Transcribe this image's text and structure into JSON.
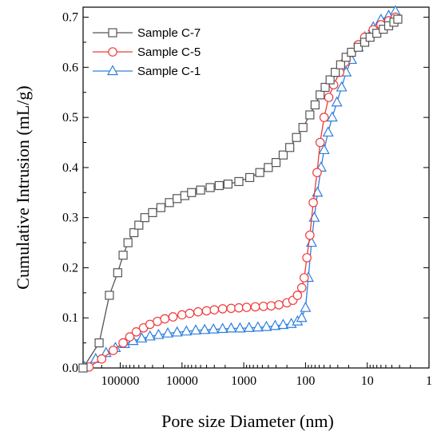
{
  "chart_data": {
    "type": "line",
    "title": "",
    "xlabel": "Pore size Diameter (nm)",
    "ylabel": "Cumulative Intrusion (mL/g)",
    "xscale": "log",
    "x_reversed": true,
    "xlim": [
      400000,
      1
    ],
    "ylim": [
      0,
      0.72
    ],
    "x_ticks": [
      100000,
      10000,
      1000,
      100,
      10,
      1
    ],
    "x_tick_labels": [
      "100000",
      "10000",
      "1000",
      "100",
      "10",
      "1"
    ],
    "y_ticks": [
      0.0,
      0.1,
      0.2,
      0.3,
      0.4,
      0.5,
      0.6,
      0.7
    ],
    "y_tick_labels": [
      "0.0",
      "0.1",
      "0.2",
      "0.3",
      "0.4",
      "0.5",
      "0.6",
      "0.7"
    ],
    "grid": false,
    "legend_position": "top-left",
    "series": [
      {
        "name": "Sample C-7",
        "color": "#555555",
        "marker": "square",
        "points": [
          [
            400000,
            0.0
          ],
          [
            220000,
            0.05
          ],
          [
            150000,
            0.145
          ],
          [
            110000,
            0.19
          ],
          [
            90000,
            0.225
          ],
          [
            75000,
            0.25
          ],
          [
            60000,
            0.27
          ],
          [
            50000,
            0.285
          ],
          [
            40000,
            0.3
          ],
          [
            30000,
            0.31
          ],
          [
            22000,
            0.32
          ],
          [
            16000,
            0.33
          ],
          [
            12000,
            0.338
          ],
          [
            9000,
            0.344
          ],
          [
            7000,
            0.35
          ],
          [
            5000,
            0.355
          ],
          [
            3500,
            0.36
          ],
          [
            2500,
            0.364
          ],
          [
            1800,
            0.367
          ],
          [
            1200,
            0.372
          ],
          [
            800,
            0.38
          ],
          [
            550,
            0.39
          ],
          [
            400,
            0.4
          ],
          [
            300,
            0.41
          ],
          [
            230,
            0.425
          ],
          [
            180,
            0.44
          ],
          [
            140,
            0.46
          ],
          [
            110,
            0.48
          ],
          [
            85,
            0.505
          ],
          [
            70,
            0.525
          ],
          [
            58,
            0.545
          ],
          [
            48,
            0.56
          ],
          [
            40,
            0.575
          ],
          [
            33,
            0.59
          ],
          [
            27,
            0.605
          ],
          [
            22,
            0.62
          ],
          [
            18,
            0.63
          ],
          [
            14,
            0.64
          ],
          [
            11,
            0.65
          ],
          [
            9,
            0.66
          ],
          [
            7,
            0.668
          ],
          [
            5.5,
            0.676
          ],
          [
            4.5,
            0.683
          ],
          [
            3.7,
            0.69
          ],
          [
            3.2,
            0.696
          ]
        ]
      },
      {
        "name": "Sample C-5",
        "color": "#f03a3a",
        "marker": "circle",
        "points": [
          [
            320000,
            0.002
          ],
          [
            200000,
            0.018
          ],
          [
            130000,
            0.035
          ],
          [
            90000,
            0.05
          ],
          [
            70000,
            0.062
          ],
          [
            55000,
            0.072
          ],
          [
            42000,
            0.08
          ],
          [
            33000,
            0.087
          ],
          [
            25000,
            0.093
          ],
          [
            19000,
            0.098
          ],
          [
            14000,
            0.102
          ],
          [
            10000,
            0.106
          ],
          [
            7500,
            0.109
          ],
          [
            5500,
            0.112
          ],
          [
            4000,
            0.114
          ],
          [
            3000,
            0.116
          ],
          [
            2200,
            0.118
          ],
          [
            1600,
            0.119
          ],
          [
            1200,
            0.12
          ],
          [
            900,
            0.121
          ],
          [
            650,
            0.122
          ],
          [
            480,
            0.123
          ],
          [
            360,
            0.124
          ],
          [
            270,
            0.126
          ],
          [
            200,
            0.13
          ],
          [
            160,
            0.135
          ],
          [
            135,
            0.145
          ],
          [
            115,
            0.16
          ],
          [
            105,
            0.18
          ],
          [
            95,
            0.22
          ],
          [
            85,
            0.265
          ],
          [
            75,
            0.33
          ],
          [
            65,
            0.39
          ],
          [
            58,
            0.45
          ],
          [
            50,
            0.5
          ],
          [
            42,
            0.54
          ],
          [
            35,
            0.565
          ],
          [
            28,
            0.59
          ],
          [
            23,
            0.61
          ],
          [
            18,
            0.63
          ],
          [
            14,
            0.645
          ],
          [
            11,
            0.66
          ],
          [
            8,
            0.675
          ],
          [
            6,
            0.685
          ],
          [
            4.5,
            0.693
          ],
          [
            3.5,
            0.7
          ]
        ]
      },
      {
        "name": "Sample C-1",
        "color": "#2e7fe0",
        "marker": "triangle",
        "points": [
          [
            380000,
            0.002
          ],
          [
            250000,
            0.018
          ],
          [
            170000,
            0.03
          ],
          [
            120000,
            0.04
          ],
          [
            85000,
            0.048
          ],
          [
            62000,
            0.054
          ],
          [
            45000,
            0.059
          ],
          [
            33000,
            0.063
          ],
          [
            24000,
            0.066
          ],
          [
            17000,
            0.069
          ],
          [
            12000,
            0.071
          ],
          [
            8500,
            0.073
          ],
          [
            6000,
            0.075
          ],
          [
            4300,
            0.076
          ],
          [
            3100,
            0.077
          ],
          [
            2200,
            0.078
          ],
          [
            1600,
            0.079
          ],
          [
            1150,
            0.079
          ],
          [
            820,
            0.08
          ],
          [
            590,
            0.081
          ],
          [
            430,
            0.082
          ],
          [
            310,
            0.084
          ],
          [
            230,
            0.086
          ],
          [
            170,
            0.088
          ],
          [
            135,
            0.093
          ],
          [
            115,
            0.1
          ],
          [
            100,
            0.12
          ],
          [
            90,
            0.18
          ],
          [
            80,
            0.25
          ],
          [
            72,
            0.3
          ],
          [
            64,
            0.35
          ],
          [
            56,
            0.4
          ],
          [
            50,
            0.435
          ],
          [
            43,
            0.47
          ],
          [
            37,
            0.5
          ],
          [
            31,
            0.53
          ],
          [
            26,
            0.56
          ],
          [
            22,
            0.59
          ],
          [
            18,
            0.615
          ],
          [
            14,
            0.64
          ],
          [
            11,
            0.66
          ],
          [
            8,
            0.68
          ],
          [
            6,
            0.695
          ],
          [
            4.5,
            0.703
          ],
          [
            3.5,
            0.712
          ]
        ]
      }
    ]
  }
}
